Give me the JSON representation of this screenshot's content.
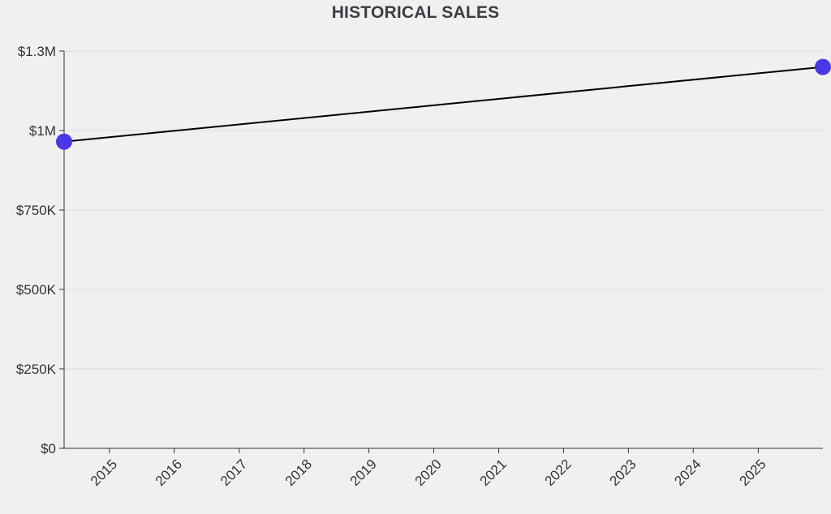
{
  "chart_data": {
    "type": "line",
    "title": "HISTORICAL SALES",
    "xlabel": "",
    "ylabel": "",
    "x_ticks": [
      "2015",
      "2016",
      "2017",
      "2018",
      "2019",
      "2020",
      "2021",
      "2022",
      "2023",
      "2024",
      "2025"
    ],
    "x_domain": [
      "2014-04-21",
      "2025-12-31"
    ],
    "y_ticks": [
      0,
      250000,
      500000,
      750000,
      1000000,
      1250000
    ],
    "y_tick_labels": [
      "$0",
      "$250K",
      "$500K",
      "$750K",
      "$1M",
      "$1.3M"
    ],
    "ylim": [
      0,
      1250000
    ],
    "grid": "horizontal",
    "legend": "none",
    "series": [
      {
        "x": [
          "2014-04-21",
          "2025-12-31"
        ],
        "values": [
          965000,
          1200000
        ],
        "line_color": "#000000",
        "marker_color": "#4a37e6"
      }
    ]
  }
}
